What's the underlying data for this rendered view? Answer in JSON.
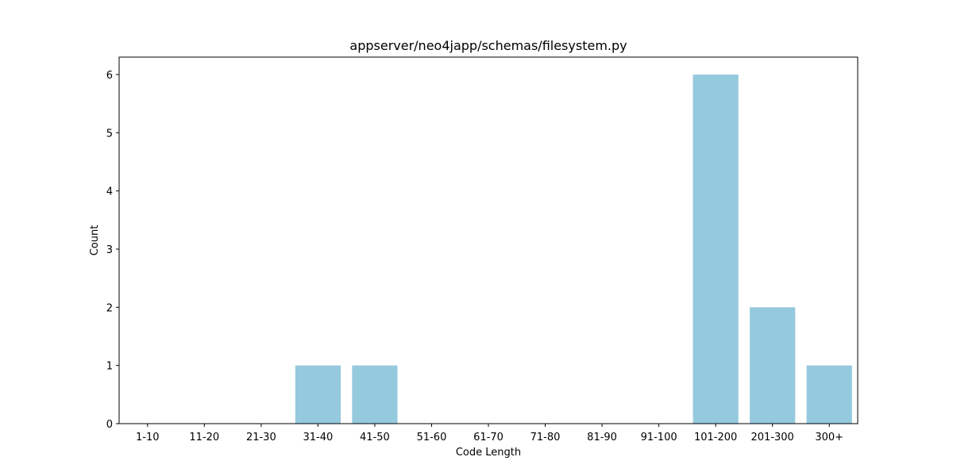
{
  "chart_data": {
    "type": "bar",
    "title": "appserver/neo4japp/schemas/filesystem.py",
    "xlabel": "Code Length",
    "ylabel": "Count",
    "categories": [
      "1-10",
      "11-20",
      "21-30",
      "31-40",
      "41-50",
      "51-60",
      "61-70",
      "71-80",
      "81-90",
      "91-100",
      "101-200",
      "201-300",
      "300+"
    ],
    "values": [
      0,
      0,
      0,
      1,
      1,
      0,
      0,
      0,
      0,
      0,
      6,
      2,
      1
    ],
    "ylim": [
      0,
      6.3
    ],
    "yticks": [
      0,
      1,
      2,
      3,
      4,
      5,
      6
    ],
    "grid": false,
    "colors": {
      "bar": "#95c9de",
      "axis": "#000000"
    }
  }
}
